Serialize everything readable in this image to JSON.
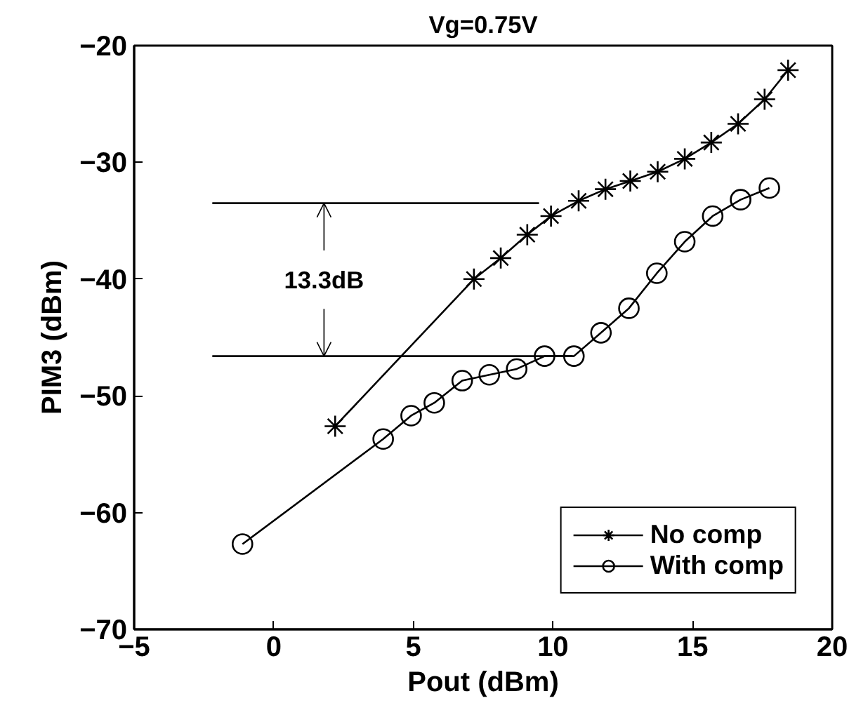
{
  "chart_data": {
    "type": "line",
    "title": "Vg=0.75V",
    "xlabel": "Pout (dBm)",
    "ylabel": "PIM3 (dBm)",
    "xlim": [
      -5,
      20
    ],
    "xticks": [
      -5,
      0,
      5,
      10,
      15,
      20
    ],
    "ylim": [
      -70,
      -20
    ],
    "yticks": [
      -70,
      -60,
      -50,
      -40,
      -30,
      -20
    ],
    "grid": false,
    "legend": "bottom right",
    "line_style": "solid",
    "series": [
      {
        "name": "No comp",
        "color": "#000000",
        "marker": "cross",
        "x": [
          2.2,
          7.17,
          8.13,
          9.08,
          9.93,
          10.92,
          11.88,
          12.77,
          13.75,
          14.72,
          15.67,
          16.63,
          17.58,
          18.42
        ],
        "values": [
          -52.6,
          -40.0,
          -38.2,
          -36.2,
          -34.6,
          -33.3,
          -32.3,
          -31.6,
          -30.8,
          -29.7,
          -28.3,
          -26.7,
          -24.6,
          -22.1
        ]
      },
      {
        "name": "With comp",
        "color": "#000000",
        "marker": "circle",
        "x": [
          -1.12,
          3.92,
          4.92,
          5.75,
          6.75,
          7.72,
          8.7,
          9.7,
          10.75,
          11.72,
          12.72,
          13.72,
          14.72,
          15.72,
          16.72,
          17.75
        ],
        "values": [
          -62.7,
          -53.7,
          -51.7,
          -50.6,
          -48.7,
          -48.2,
          -47.7,
          -46.6,
          -46.6,
          -44.6,
          -42.5,
          -39.5,
          -36.8,
          -34.6,
          -33.2,
          -32.2
        ]
      },
      {
        "color": "#000000",
        "marker": "none",
        "x": [
          -2.2,
          9.5
        ],
        "values": [
          -33.5,
          -33.5
        ]
      },
      {
        "color": "#000000",
        "marker": "none",
        "x": [
          -2.2,
          10.7
        ],
        "values": [
          -46.6,
          -46.6
        ]
      }
    ],
    "annotations": [
      {
        "text": "13.3dB",
        "x": 1.8,
        "y": -33.5
      }
    ]
  }
}
